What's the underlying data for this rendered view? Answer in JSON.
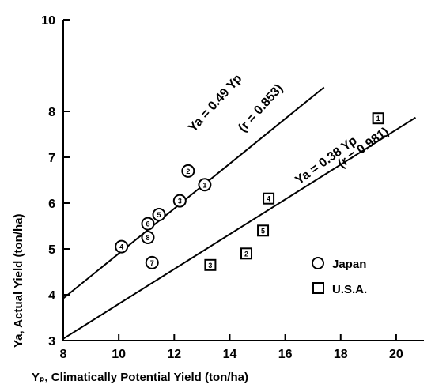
{
  "chart_data": {
    "type": "scatter",
    "title": "",
    "xlabel": "Yₚ, Climatically Potential Yield (ton/ha)",
    "ylabel": "Ya, Actual Yield (ton/ha)",
    "xlim": [
      8,
      21
    ],
    "ylim": [
      3,
      10
    ],
    "x_ticks": [
      8,
      10,
      12,
      14,
      16,
      18,
      20
    ],
    "y_ticks": [
      3,
      4,
      5,
      6,
      7,
      8,
      10
    ],
    "series": [
      {
        "name": "Japan",
        "marker": "circle",
        "points": [
          {
            "id": "1",
            "x": 13.1,
            "y": 6.4
          },
          {
            "id": "2",
            "x": 12.5,
            "y": 6.7
          },
          {
            "id": "3",
            "x": 12.2,
            "y": 6.05
          },
          {
            "id": "4",
            "x": 10.1,
            "y": 5.05
          },
          {
            "id": "5",
            "x": 11.45,
            "y": 5.75
          },
          {
            "id": "6",
            "x": 11.05,
            "y": 5.55
          },
          {
            "id": "7",
            "x": 11.2,
            "y": 4.7
          },
          {
            "id": "8",
            "x": 11.05,
            "y": 5.25
          }
        ]
      },
      {
        "name": "U.S.A.",
        "marker": "square",
        "points": [
          {
            "id": "1",
            "x": 19.35,
            "y": 7.85
          },
          {
            "id": "2",
            "x": 14.6,
            "y": 4.9
          },
          {
            "id": "3",
            "x": 13.3,
            "y": 4.65
          },
          {
            "id": "4",
            "x": 15.4,
            "y": 6.1
          },
          {
            "id": "5",
            "x": 15.2,
            "y": 5.4
          }
        ]
      }
    ],
    "fit_lines": [
      {
        "slope": 0.49,
        "x_range": [
          8,
          17.4
        ],
        "equation": "Ya = 0.49 Yp",
        "r": "(r = 0.853)"
      },
      {
        "slope": 0.38,
        "x_range": [
          8,
          20.7
        ],
        "equation": "Ya = 0.38 Yp",
        "r": "(r = 0.981)"
      }
    ],
    "legend": {
      "position": "right",
      "items": [
        "Japan",
        "U.S.A."
      ]
    }
  }
}
